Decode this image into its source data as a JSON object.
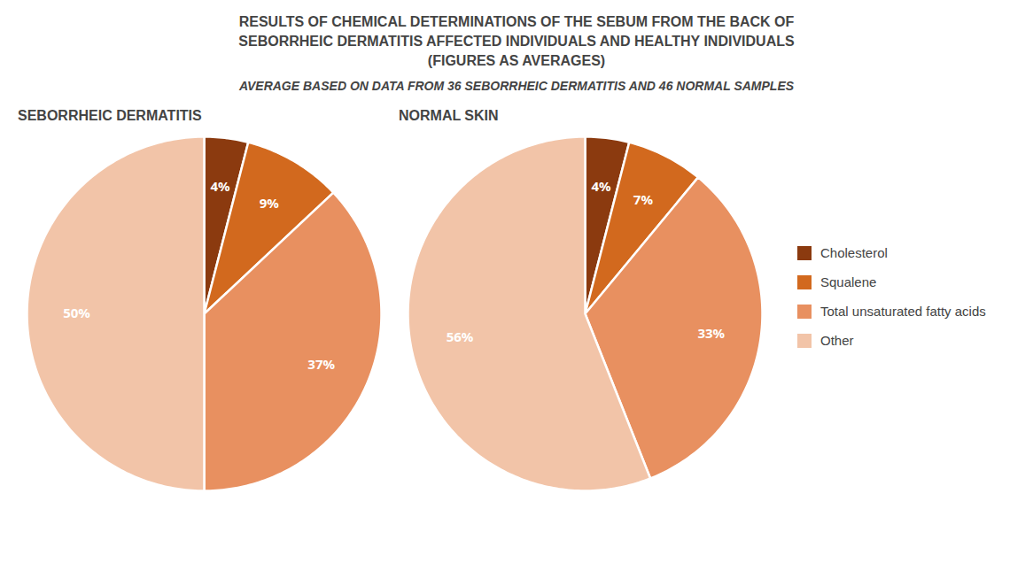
{
  "title": [
    "RESULTS OF CHEMICAL DETERMINATIONS OF THE SEBUM FROM THE BACK OF",
    "SEBORRHEIC DERMATITIS AFFECTED INDIVIDUALS AND HEALTHY INDIVIDUALS",
    "(FIGURES AS AVERAGES)"
  ],
  "subtitle": "AVERAGE BASED ON DATA FROM 36 SEBORRHEIC DERMATITIS AND 46 NORMAL SAMPLES",
  "chart_data": [
    {
      "type": "pie",
      "title": "SEBORRHEIC DERMATITIS",
      "categories": [
        "Cholesterol",
        "Squalene",
        "Total unsaturated fatty acids",
        "Other"
      ],
      "values": [
        4,
        9,
        37,
        50
      ],
      "value_labels": [
        "4%",
        "9%",
        "37%",
        "50%"
      ],
      "colors": [
        "#8B3A0F",
        "#D2691E",
        "#E89060",
        "#F2C4A8"
      ],
      "data_labels": true,
      "legend": "right"
    },
    {
      "type": "pie",
      "title": "NORMAL SKIN",
      "categories": [
        "Cholesterol",
        "Squalene",
        "Total unsaturated fatty acids",
        "Other"
      ],
      "values": [
        4,
        7,
        33,
        56
      ],
      "value_labels": [
        "4%",
        "7%",
        "33%",
        "56%"
      ],
      "colors": [
        "#8B3A0F",
        "#D2691E",
        "#E89060",
        "#F2C4A8"
      ],
      "data_labels": true,
      "legend": "right"
    }
  ]
}
